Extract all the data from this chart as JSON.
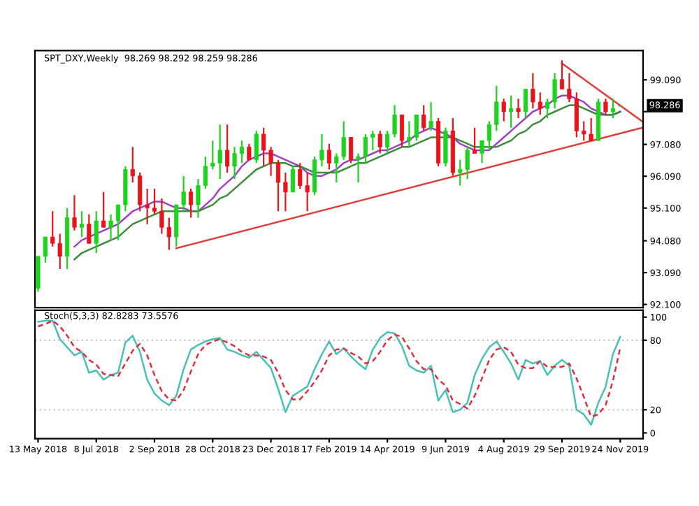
{
  "chart_data": [
    {
      "type": "candlestick",
      "title": "SPT_DXY,Weekly  98.269 98.292 98.259 98.286",
      "grid": false,
      "tick_labels": "y",
      "x": [
        "2018-05-13",
        "2018-05-20",
        "2018-05-27",
        "2018-06-03",
        "2018-06-10",
        "2018-06-17",
        "2018-06-24",
        "2018-07-01",
        "2018-07-08",
        "2018-07-15",
        "2018-07-22",
        "2018-07-29",
        "2018-08-05",
        "2018-08-12",
        "2018-08-19",
        "2018-08-26",
        "2018-09-02",
        "2018-09-09",
        "2018-09-16",
        "2018-09-23",
        "2018-09-30",
        "2018-10-07",
        "2018-10-14",
        "2018-10-21",
        "2018-10-28",
        "2018-11-04",
        "2018-11-11",
        "2018-11-18",
        "2018-11-25",
        "2018-12-02",
        "2018-12-09",
        "2018-12-16",
        "2018-12-23",
        "2018-12-30",
        "2019-01-06",
        "2019-01-13",
        "2019-01-20",
        "2019-01-27",
        "2019-02-03",
        "2019-02-10",
        "2019-02-17",
        "2019-02-24",
        "2019-03-03",
        "2019-03-10",
        "2019-03-17",
        "2019-03-24",
        "2019-03-31",
        "2019-04-07",
        "2019-04-14",
        "2019-04-21",
        "2019-04-28",
        "2019-05-05",
        "2019-05-12",
        "2019-05-19",
        "2019-05-26",
        "2019-06-02",
        "2019-06-09",
        "2019-06-16",
        "2019-06-23",
        "2019-06-30",
        "2019-07-07",
        "2019-07-14",
        "2019-07-21",
        "2019-07-28",
        "2019-08-04",
        "2019-08-11",
        "2019-08-18",
        "2019-08-25",
        "2019-09-01",
        "2019-09-08",
        "2019-09-15",
        "2019-09-22",
        "2019-09-29",
        "2019-10-06",
        "2019-10-13",
        "2019-10-20",
        "2019-10-27",
        "2019-11-03",
        "2019-11-10",
        "2019-11-17",
        "2019-11-24"
      ],
      "ohlc": [
        [
          92.6,
          93.6,
          92.5,
          93.6
        ],
        [
          93.6,
          94.2,
          93.4,
          94.2
        ],
        [
          94.2,
          95.0,
          93.9,
          94.0
        ],
        [
          94.0,
          94.3,
          93.2,
          93.6
        ],
        [
          93.6,
          95.1,
          93.2,
          94.8
        ],
        [
          94.8,
          95.5,
          94.4,
          94.5
        ],
        [
          94.5,
          95.0,
          94.2,
          94.6
        ],
        [
          94.6,
          94.9,
          94.0,
          94.0
        ],
        [
          94.0,
          95.0,
          93.7,
          94.7
        ],
        [
          94.7,
          95.6,
          94.5,
          94.5
        ],
        [
          94.5,
          94.9,
          94.1,
          94.7
        ],
        [
          94.7,
          95.2,
          94.1,
          95.2
        ],
        [
          95.2,
          96.4,
          95.0,
          96.3
        ],
        [
          96.3,
          97.0,
          95.9,
          96.1
        ],
        [
          96.1,
          96.2,
          95.0,
          95.2
        ],
        [
          95.2,
          95.7,
          94.6,
          95.1
        ],
        [
          95.1,
          95.7,
          94.9,
          95.0
        ],
        [
          95.0,
          95.4,
          94.3,
          94.5
        ],
        [
          94.5,
          94.8,
          93.8,
          94.2
        ],
        [
          94.2,
          95.2,
          93.9,
          95.2
        ],
        [
          95.2,
          96.1,
          95.0,
          95.6
        ],
        [
          95.6,
          95.7,
          94.8,
          95.2
        ],
        [
          95.2,
          96.0,
          94.8,
          95.8
        ],
        [
          95.8,
          96.7,
          95.7,
          96.4
        ],
        [
          96.4,
          97.2,
          96.3,
          96.5
        ],
        [
          96.5,
          97.7,
          96.0,
          96.9
        ],
        [
          96.9,
          97.7,
          96.2,
          96.4
        ],
        [
          96.4,
          97.0,
          96.0,
          96.8
        ],
        [
          96.8,
          97.2,
          96.5,
          97.0
        ],
        [
          97.0,
          97.1,
          96.6,
          96.6
        ],
        [
          96.6,
          97.5,
          96.5,
          97.4
        ],
        [
          97.4,
          97.6,
          96.4,
          96.9
        ],
        [
          96.9,
          97.0,
          96.1,
          96.5
        ],
        [
          96.5,
          96.6,
          95.0,
          95.9
        ],
        [
          95.9,
          96.2,
          95.0,
          95.6
        ],
        [
          95.6,
          96.4,
          95.6,
          96.3
        ],
        [
          96.3,
          96.5,
          95.7,
          95.8
        ],
        [
          95.8,
          96.2,
          95.0,
          95.6
        ],
        [
          95.6,
          96.7,
          95.5,
          96.6
        ],
        [
          96.6,
          97.4,
          96.4,
          96.9
        ],
        [
          96.9,
          97.1,
          96.3,
          96.5
        ],
        [
          96.5,
          96.8,
          95.9,
          96.7
        ],
        [
          96.7,
          97.8,
          96.6,
          97.3
        ],
        [
          97.3,
          97.3,
          96.5,
          96.6
        ],
        [
          96.6,
          96.8,
          95.9,
          96.7
        ],
        [
          96.7,
          97.4,
          96.5,
          97.3
        ],
        [
          97.3,
          97.5,
          96.9,
          97.4
        ],
        [
          97.4,
          97.5,
          96.8,
          97.0
        ],
        [
          97.0,
          97.5,
          96.8,
          97.4
        ],
        [
          97.4,
          98.3,
          97.3,
          98.0
        ],
        [
          98.0,
          98.0,
          97.0,
          97.2
        ],
        [
          97.2,
          97.8,
          97.0,
          97.3
        ],
        [
          97.3,
          98.0,
          97.2,
          98.0
        ],
        [
          98.0,
          98.3,
          97.5,
          97.6
        ],
        [
          97.6,
          98.4,
          97.5,
          97.8
        ],
        [
          97.8,
          97.9,
          96.4,
          96.5
        ],
        [
          96.5,
          97.6,
          96.4,
          97.5
        ],
        [
          97.5,
          97.9,
          96.1,
          96.2
        ],
        [
          96.2,
          96.6,
          95.8,
          96.3
        ],
        [
          96.3,
          97.0,
          96.0,
          96.9
        ],
        [
          96.9,
          97.6,
          96.8,
          96.8
        ],
        [
          96.8,
          97.2,
          96.5,
          97.2
        ],
        [
          97.2,
          97.8,
          96.9,
          97.7
        ],
        [
          97.7,
          98.9,
          97.5,
          98.4
        ],
        [
          98.4,
          98.5,
          97.8,
          98.1
        ],
        [
          98.1,
          98.6,
          97.6,
          98.2
        ],
        [
          98.2,
          98.5,
          97.9,
          98.1
        ],
        [
          98.1,
          98.8,
          97.9,
          98.8
        ],
        [
          98.8,
          99.3,
          98.2,
          98.4
        ],
        [
          98.4,
          98.7,
          98.0,
          98.2
        ],
        [
          98.2,
          98.5,
          97.9,
          98.4
        ],
        [
          98.4,
          99.3,
          98.2,
          99.1
        ],
        [
          99.1,
          99.7,
          98.8,
          98.8
        ],
        [
          98.8,
          99.3,
          98.4,
          98.5
        ],
        [
          98.5,
          98.7,
          97.3,
          97.5
        ],
        [
          97.5,
          97.8,
          97.2,
          97.4
        ],
        [
          97.4,
          97.9,
          97.2,
          97.2
        ],
        [
          97.2,
          98.5,
          97.2,
          98.4
        ],
        [
          98.4,
          98.5,
          98.0,
          98.1
        ],
        [
          98.1,
          98.5,
          97.9,
          98.2
        ],
        [
          98.269,
          98.292,
          98.259,
          98.286
        ]
      ],
      "colors": [
        "#1ed21e",
        "#1ed21e",
        "#e8141c",
        "#e8141c",
        "#1ed21e",
        "#e8141c",
        "#1ed21e",
        "#e8141c",
        "#1ed21e",
        "#e8141c",
        "#1ed21e",
        "#1ed21e",
        "#1ed21e",
        "#e8141c",
        "#e8141c",
        "#e8141c",
        "#e8141c",
        "#e8141c",
        "#e8141c",
        "#1ed21e",
        "#1ed21e",
        "#e8141c",
        "#1ed21e",
        "#1ed21e",
        "#1ed21e",
        "#1ed21e",
        "#e8141c",
        "#1ed21e",
        "#1ed21e",
        "#e8141c",
        "#1ed21e",
        "#e8141c",
        "#e8141c",
        "#e8141c",
        "#e8141c",
        "#1ed21e",
        "#e8141c",
        "#e8141c",
        "#1ed21e",
        "#1ed21e",
        "#e8141c",
        "#1ed21e",
        "#1ed21e",
        "#e8141c",
        "#1ed21e",
        "#1ed21e",
        "#1ed21e",
        "#e8141c",
        "#1ed21e",
        "#1ed21e",
        "#e8141c",
        "#1ed21e",
        "#1ed21e",
        "#e8141c",
        "#1ed21e",
        "#e8141c",
        "#1ed21e",
        "#e8141c",
        "#1ed21e",
        "#1ed21e",
        "#e8141c",
        "#1ed21e",
        "#1ed21e",
        "#1ed21e",
        "#e8141c",
        "#1ed21e",
        "#e8141c",
        "#1ed21e",
        "#e8141c",
        "#e8141c",
        "#1ed21e",
        "#1ed21e",
        "#e8141c",
        "#e8141c",
        "#e8141c",
        "#e8141c",
        "#e8141c",
        "#1ed21e",
        "#e8141c",
        "#1ed21e",
        "#1ed21e"
      ],
      "series": [
        {
          "type": "line",
          "color": "#a040c8",
          "values": [
            null,
            null,
            null,
            null,
            null,
            93.9,
            94.1,
            94.2,
            94.3,
            94.4,
            94.5,
            94.6,
            94.8,
            95.0,
            95.1,
            95.2,
            95.3,
            95.3,
            95.2,
            95.1,
            95.1,
            95.0,
            95.0,
            95.2,
            95.4,
            95.7,
            95.9,
            96.1,
            96.4,
            96.6,
            96.7,
            96.8,
            96.8,
            96.7,
            96.6,
            96.5,
            96.4,
            96.2,
            96.1,
            96.1,
            96.2,
            96.3,
            96.5,
            96.6,
            96.6,
            96.7,
            96.8,
            96.9,
            96.9,
            97.0,
            97.1,
            97.2,
            97.4,
            97.5,
            97.6,
            97.5,
            97.4,
            97.3,
            97.1,
            97.0,
            96.9,
            96.9,
            96.9,
            97.1,
            97.3,
            97.5,
            97.7,
            97.9,
            98.1,
            98.2,
            98.3,
            98.5,
            98.6,
            98.6,
            98.5,
            98.4,
            98.2,
            98.1,
            98.0,
            98.0,
            98.1
          ]
        },
        {
          "type": "line",
          "color": "#3c8c3c",
          "values": [
            null,
            null,
            null,
            null,
            null,
            93.5,
            93.7,
            93.8,
            93.9,
            94.0,
            94.1,
            94.2,
            94.4,
            94.6,
            94.7,
            94.8,
            94.9,
            95.0,
            95.0,
            95.0,
            95.0,
            95.0,
            95.0,
            95.1,
            95.2,
            95.4,
            95.5,
            95.7,
            95.9,
            96.1,
            96.3,
            96.4,
            96.5,
            96.5,
            96.5,
            96.4,
            96.4,
            96.3,
            96.2,
            96.2,
            96.2,
            96.2,
            96.3,
            96.4,
            96.5,
            96.5,
            96.6,
            96.7,
            96.8,
            96.9,
            97.0,
            97.0,
            97.1,
            97.2,
            97.3,
            97.3,
            97.3,
            97.3,
            97.2,
            97.1,
            97.0,
            97.0,
            97.0,
            97.0,
            97.1,
            97.2,
            97.4,
            97.5,
            97.7,
            97.8,
            98.0,
            98.1,
            98.2,
            98.3,
            98.3,
            98.2,
            98.1,
            98.0,
            98.0,
            98.0,
            98.1
          ]
        },
        {
          "type": "line",
          "color": "#e03c3c",
          "x": [
            "2018-09-23",
            "2019-12-15"
          ],
          "values": [
            93.85,
            97.6
          ]
        },
        {
          "type": "line",
          "color": "#e03c3c",
          "x": [
            "2019-09-29",
            "2019-12-15"
          ],
          "values": [
            99.6,
            97.8
          ]
        }
      ],
      "xlim": [
        "2018-05-10",
        "2019-12-16"
      ],
      "ylim": [
        92.0,
        100.0
      ],
      "yticks": [
        {
          "value": 99.09,
          "label": "99.090"
        },
        {
          "value": 98.1,
          "label": null
        },
        {
          "value": 97.08,
          "label": "97.080"
        },
        {
          "value": 96.09,
          "label": "96.090"
        },
        {
          "value": 95.1,
          "label": "95.100"
        },
        {
          "value": 94.08,
          "label": "94.080"
        },
        {
          "value": 93.09,
          "label": "93.090"
        },
        {
          "value": 92.1,
          "label": "92.100"
        }
      ],
      "annotations": [
        "98.286"
      ]
    },
    {
      "type": "line",
      "title": "Stoch(5,3,3) 82.8283 73.5576",
      "grid": false,
      "x": [
        "2018-05-13",
        "2018-05-20",
        "2018-05-27",
        "2018-06-03",
        "2018-06-10",
        "2018-06-17",
        "2018-06-24",
        "2018-07-01",
        "2018-07-08",
        "2018-07-15",
        "2018-07-22",
        "2018-07-29",
        "2018-08-05",
        "2018-08-12",
        "2018-08-19",
        "2018-08-26",
        "2018-09-02",
        "2018-09-09",
        "2018-09-16",
        "2018-09-23",
        "2018-09-30",
        "2018-10-07",
        "2018-10-14",
        "2018-10-21",
        "2018-10-28",
        "2018-11-04",
        "2018-11-11",
        "2018-11-18",
        "2018-11-25",
        "2018-12-02",
        "2018-12-09",
        "2018-12-16",
        "2018-12-23",
        "2018-12-30",
        "2019-01-06",
        "2019-01-13",
        "2019-01-20",
        "2019-01-27",
        "2019-02-03",
        "2019-02-10",
        "2019-02-17",
        "2019-02-24",
        "2019-03-03",
        "2019-03-10",
        "2019-03-17",
        "2019-03-24",
        "2019-03-31",
        "2019-04-07",
        "2019-04-14",
        "2019-04-21",
        "2019-04-28",
        "2019-05-05",
        "2019-05-12",
        "2019-05-19",
        "2019-05-26",
        "2019-06-02",
        "2019-06-09",
        "2019-06-16",
        "2019-06-23",
        "2019-06-30",
        "2019-07-07",
        "2019-07-14",
        "2019-07-21",
        "2019-07-28",
        "2019-08-04",
        "2019-08-11",
        "2019-08-18",
        "2019-08-25",
        "2019-09-01",
        "2019-09-08",
        "2019-09-15",
        "2019-09-22",
        "2019-09-29",
        "2019-10-06",
        "2019-10-13",
        "2019-10-20",
        "2019-10-27",
        "2019-11-03",
        "2019-11-10",
        "2019-11-17",
        "2019-11-24"
      ],
      "series": [
        {
          "color": "#48c0b8",
          "line_style": "solid",
          "values": [
            96,
            97,
            97,
            81,
            74,
            67,
            70,
            52,
            54,
            46,
            50,
            52,
            78,
            84,
            70,
            46,
            34,
            28,
            24,
            32,
            55,
            72,
            76,
            79,
            81,
            82,
            72,
            70,
            67,
            65,
            70,
            63,
            56,
            38,
            18,
            32,
            36,
            40,
            55,
            68,
            79,
            68,
            73,
            66,
            60,
            55,
            72,
            82,
            87,
            86,
            75,
            58,
            54,
            52,
            58,
            28,
            37,
            18,
            20,
            26,
            50,
            64,
            74,
            79,
            70,
            60,
            46,
            63,
            60,
            62,
            50,
            58,
            63,
            58,
            20,
            16,
            7,
            26,
            40,
            68,
            82.8283
          ]
        },
        {
          "color": "#e03040",
          "line_style": "dashed",
          "values": [
            92,
            94,
            97,
            92,
            84,
            74,
            70,
            63,
            59,
            51,
            50,
            49,
            60,
            71,
            77,
            67,
            50,
            36,
            29,
            28,
            37,
            53,
            68,
            76,
            79,
            81,
            78,
            75,
            70,
            67,
            67,
            66,
            63,
            52,
            37,
            29,
            29,
            36,
            44,
            54,
            67,
            72,
            73,
            69,
            66,
            60,
            62,
            70,
            80,
            85,
            83,
            73,
            62,
            55,
            55,
            46,
            41,
            28,
            25,
            21,
            32,
            47,
            63,
            72,
            74,
            70,
            59,
            56,
            56,
            62,
            57,
            57,
            57,
            60,
            47,
            31,
            14,
            16,
            24,
            45,
            73.5576
          ]
        }
      ],
      "xlim": [
        "2018-05-10",
        "2019-12-16"
      ],
      "ylim": [
        -5,
        106
      ],
      "yticks": [
        0,
        20,
        80,
        100
      ],
      "xticks": [
        {
          "value": "2018-05-13",
          "label": "13 May 2018"
        },
        {
          "value": "2018-07-08",
          "label": "8 Jul 2018"
        },
        {
          "value": "2018-09-02",
          "label": "2 Sep 2018"
        },
        {
          "value": "2018-10-28",
          "label": "28 Oct 2018"
        },
        {
          "value": "2018-12-23",
          "label": "23 Dec 2018"
        },
        {
          "value": "2019-02-17",
          "label": "17 Feb 2019"
        },
        {
          "value": "2019-04-14",
          "label": "14 Apr 2019"
        },
        {
          "value": "2019-06-09",
          "label": "9 Jun 2019"
        },
        {
          "value": "2019-08-04",
          "label": "4 Aug 2019"
        },
        {
          "value": "2019-09-29",
          "label": "29 Sep 2019"
        },
        {
          "value": "2019-11-24",
          "label": "24 Nov 2019"
        }
      ],
      "ref_lines": [
        {
          "axis": "y",
          "value": 80,
          "color": "#c8c8c8",
          "line_style": "dotted"
        },
        {
          "axis": "y",
          "value": 20,
          "color": "#c8c8c8",
          "line_style": "dotted"
        }
      ]
    }
  ]
}
